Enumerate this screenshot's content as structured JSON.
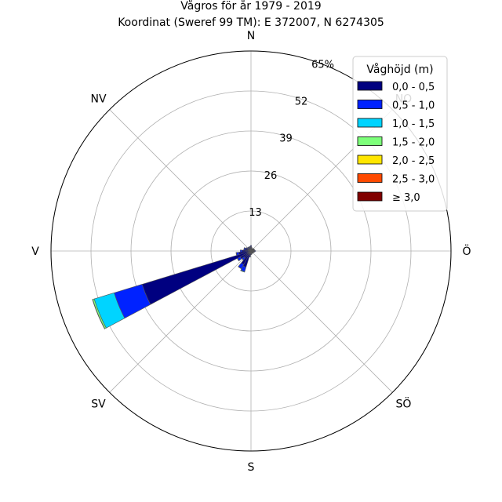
{
  "chart_data": {
    "type": "polar-bar",
    "title": "Vågros för år 1979 - 2019",
    "subtitle": "Koordinat (Sweref 99 TM): E 372007, N 6274305",
    "directions": [
      "N",
      "NV",
      "V",
      "SV",
      "S",
      "SÖ",
      "Ö",
      "NO"
    ],
    "radial_ticks": [
      "13",
      "26",
      "39",
      "52",
      "65%"
    ],
    "radial_tick_values": [
      13,
      26,
      39,
      52,
      65
    ],
    "rmax": 65,
    "grid": true,
    "legend": {
      "title": "Våghöjd (m)",
      "position": "top-right",
      "items": [
        {
          "label": "0,0 - 0,5",
          "color": "#000080"
        },
        {
          "label": "0,5 - 1,0",
          "color": "#0022ff"
        },
        {
          "label": "1,0 - 1,5",
          "color": "#00d4ff"
        },
        {
          "label": "1,5 - 2,0",
          "color": "#7dff7a"
        },
        {
          "label": "2,0 - 2,5",
          "color": "#ffe600"
        },
        {
          "label": "2,5 - 3,0",
          "color": "#ff4a00"
        },
        {
          "label": "≥ 3,0",
          "color": "#800000"
        }
      ]
    },
    "sector_width_deg": 11.25,
    "sectors": [
      {
        "direction_deg": 0,
        "values": [
          1.5,
          0.3,
          0,
          0,
          0,
          0,
          0
        ]
      },
      {
        "direction_deg": 11.25,
        "values": [
          1.0,
          0.2,
          0,
          0,
          0,
          0,
          0
        ]
      },
      {
        "direction_deg": 22.5,
        "values": [
          0.8,
          0.1,
          0,
          0,
          0,
          0,
          0
        ]
      },
      {
        "direction_deg": 33.75,
        "values": [
          0.8,
          0.1,
          0,
          0,
          0,
          0,
          0
        ]
      },
      {
        "direction_deg": 45,
        "values": [
          0.9,
          0.2,
          0,
          0,
          0,
          0,
          0
        ]
      },
      {
        "direction_deg": 56.25,
        "values": [
          1.0,
          0.2,
          0,
          0,
          0,
          0,
          0
        ]
      },
      {
        "direction_deg": 67.5,
        "values": [
          1.0,
          0.2,
          0,
          0,
          0,
          0,
          0
        ]
      },
      {
        "direction_deg": 78.75,
        "values": [
          1.0,
          0.2,
          0,
          0,
          0,
          0,
          0
        ]
      },
      {
        "direction_deg": 90,
        "values": [
          1.2,
          0.3,
          0,
          0,
          0,
          0,
          0
        ]
      },
      {
        "direction_deg": 101.25,
        "values": [
          1.0,
          0.2,
          0,
          0,
          0,
          0,
          0
        ]
      },
      {
        "direction_deg": 112.5,
        "values": [
          0.9,
          0.2,
          0,
          0,
          0,
          0,
          0
        ]
      },
      {
        "direction_deg": 123.75,
        "values": [
          0.8,
          0.1,
          0,
          0,
          0,
          0,
          0
        ]
      },
      {
        "direction_deg": 135,
        "values": [
          0.8,
          0.1,
          0,
          0,
          0,
          0,
          0
        ]
      },
      {
        "direction_deg": 146.25,
        "values": [
          0.8,
          0.1,
          0,
          0,
          0,
          0,
          0
        ]
      },
      {
        "direction_deg": 157.5,
        "values": [
          0.8,
          0.1,
          0,
          0,
          0,
          0,
          0
        ]
      },
      {
        "direction_deg": 168.75,
        "values": [
          0.9,
          0.2,
          0,
          0,
          0,
          0,
          0
        ]
      },
      {
        "direction_deg": 180,
        "values": [
          1.0,
          0.2,
          0,
          0,
          0,
          0,
          0
        ]
      },
      {
        "direction_deg": 191.25,
        "values": [
          1.5,
          0.5,
          0,
          0,
          0,
          0,
          0
        ]
      },
      {
        "direction_deg": 202.5,
        "values": [
          5.5,
          1.5,
          0.2,
          0,
          0,
          0,
          0
        ]
      },
      {
        "direction_deg": 213.75,
        "values": [
          5.0,
          1.5,
          0.1,
          0,
          0,
          0,
          0
        ]
      },
      {
        "direction_deg": 225,
        "values": [
          3.0,
          0.8,
          0.1,
          0,
          0,
          0,
          0
        ]
      },
      {
        "direction_deg": 236.25,
        "values": [
          4.0,
          1.0,
          0.1,
          0,
          0,
          0,
          0
        ]
      },
      {
        "direction_deg": 247.5,
        "values": [
          37.0,
          9.5,
          6.8,
          0.5,
          0.1,
          0,
          0
        ]
      },
      {
        "direction_deg": 258.75,
        "values": [
          4.0,
          0.8,
          0.1,
          0,
          0,
          0,
          0
        ]
      },
      {
        "direction_deg": 270,
        "values": [
          3.0,
          0.5,
          0,
          0,
          0,
          0,
          0
        ]
      },
      {
        "direction_deg": 281.25,
        "values": [
          2.0,
          0.4,
          0,
          0,
          0,
          0,
          0
        ]
      },
      {
        "direction_deg": 292.5,
        "values": [
          2.0,
          0.4,
          0,
          0,
          0,
          0,
          0
        ]
      },
      {
        "direction_deg": 303.75,
        "values": [
          1.5,
          0.3,
          0,
          0,
          0,
          0,
          0
        ]
      },
      {
        "direction_deg": 315,
        "values": [
          1.2,
          0.3,
          0,
          0,
          0,
          0,
          0
        ]
      },
      {
        "direction_deg": 326.25,
        "values": [
          1.2,
          0.3,
          0,
          0,
          0,
          0,
          0
        ]
      },
      {
        "direction_deg": 337.5,
        "values": [
          1.2,
          0.3,
          0,
          0,
          0,
          0,
          0
        ]
      },
      {
        "direction_deg": 348.75,
        "values": [
          1.2,
          0.3,
          0,
          0,
          0,
          0,
          0
        ]
      }
    ]
  }
}
